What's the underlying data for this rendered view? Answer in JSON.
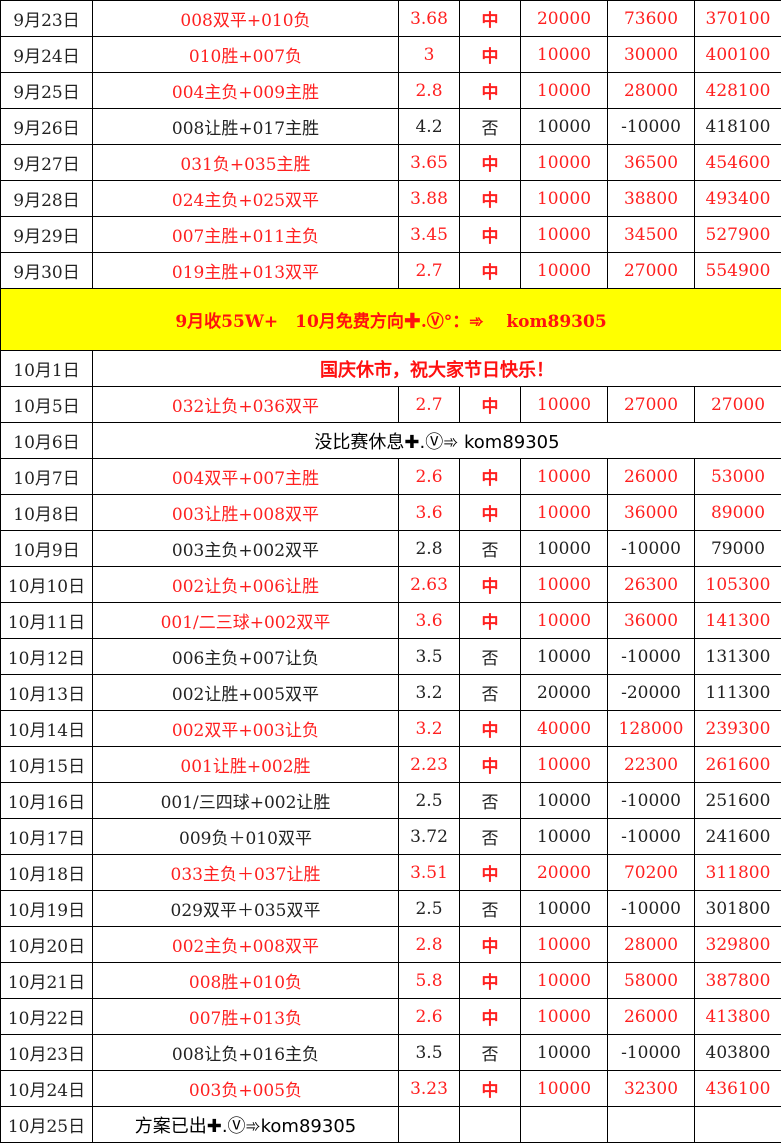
{
  "colors": {
    "win": "#ff2020",
    "loss": "#222222",
    "banner_bg": "#ffff00"
  },
  "rows_before": [
    {
      "date": "9月23日",
      "pick": "008双平+010负",
      "odds": "3.68",
      "result": "中",
      "stake": "20000",
      "profit": "73600",
      "total": "370100",
      "win": true
    },
    {
      "date": "9月24日",
      "pick": "010胜+007负",
      "odds": "3",
      "result": "中",
      "stake": "10000",
      "profit": "30000",
      "total": "400100",
      "win": true
    },
    {
      "date": "9月25日",
      "pick": "004主负+009主胜",
      "odds": "2.8",
      "result": "中",
      "stake": "10000",
      "profit": "28000",
      "total": "428100",
      "win": true
    },
    {
      "date": "9月26日",
      "pick": "008让胜+017主胜",
      "odds": "4.2",
      "result": "否",
      "stake": "10000",
      "profit": "-10000",
      "total": "418100",
      "win": false
    },
    {
      "date": "9月27日",
      "pick": "031负+035主胜",
      "odds": "3.65",
      "result": "中",
      "stake": "10000",
      "profit": "36500",
      "total": "454600",
      "win": true
    },
    {
      "date": "9月28日",
      "pick": "024主负+025双平",
      "odds": "3.88",
      "result": "中",
      "stake": "10000",
      "profit": "38800",
      "total": "493400",
      "win": true
    },
    {
      "date": "9月29日",
      "pick": "007主胜+011主负",
      "odds": "3.45",
      "result": "中",
      "stake": "10000",
      "profit": "34500",
      "total": "527900",
      "win": true
    },
    {
      "date": "9月30日",
      "pick": "019主胜+013双平",
      "odds": "2.7",
      "result": "中",
      "stake": "10000",
      "profit": "27000",
      "total": "554900",
      "win": true
    }
  ],
  "banner": "9月收55W+　10月免费方向✚.Ⓥ°：➾　 kom89305",
  "holiday": {
    "date": "10月1日",
    "text": "国庆休市，祝大家节日快乐！"
  },
  "rows_after": [
    {
      "date": "10月5日",
      "pick": "032让负+036双平",
      "odds": "2.7",
      "result": "中",
      "stake": "10000",
      "profit": "27000",
      "total": "27000",
      "win": true
    },
    {
      "date": "10月6日",
      "promo": "没比赛休息✚.Ⓥ➾ kom89305"
    },
    {
      "date": "10月7日",
      "pick": "004双平+007主胜",
      "odds": "2.6",
      "result": "中",
      "stake": "10000",
      "profit": "26000",
      "total": "53000",
      "win": true
    },
    {
      "date": "10月8日",
      "pick": "003让胜+008双平",
      "odds": "3.6",
      "result": "中",
      "stake": "10000",
      "profit": "36000",
      "total": "89000",
      "win": true
    },
    {
      "date": "10月9日",
      "pick": "003主负+002双平",
      "odds": "2.8",
      "result": "否",
      "stake": "10000",
      "profit": "-10000",
      "total": "79000",
      "win": false
    },
    {
      "date": "10月10日",
      "pick": "002让负+006让胜",
      "odds": "2.63",
      "result": "中",
      "stake": "10000",
      "profit": "26300",
      "total": "105300",
      "win": true
    },
    {
      "date": "10月11日",
      "pick": "001/二三球+002双平",
      "odds": "3.6",
      "result": "中",
      "stake": "10000",
      "profit": "36000",
      "total": "141300",
      "win": true
    },
    {
      "date": "10月12日",
      "pick": "006主负+007让负",
      "odds": "3.5",
      "result": "否",
      "stake": "10000",
      "profit": "-10000",
      "total": "131300",
      "win": false
    },
    {
      "date": "10月13日",
      "pick": "002让胜+005双平",
      "odds": "3.2",
      "result": "否",
      "stake": "20000",
      "profit": "-20000",
      "total": "111300",
      "win": false
    },
    {
      "date": "10月14日",
      "pick": "002双平+003让负",
      "odds": "3.2",
      "result": "中",
      "stake": "40000",
      "profit": "128000",
      "total": "239300",
      "win": true
    },
    {
      "date": "10月15日",
      "pick": "001让胜+002胜",
      "odds": "2.23",
      "result": "中",
      "stake": "10000",
      "profit": "22300",
      "total": "261600",
      "win": true
    },
    {
      "date": "10月16日",
      "pick": "001/三四球+002让胜",
      "odds": "2.5",
      "result": "否",
      "stake": "10000",
      "profit": "-10000",
      "total": "251600",
      "win": false
    },
    {
      "date": "10月17日",
      "pick": "009负＋010双平",
      "odds": "3.72",
      "result": "否",
      "stake": "10000",
      "profit": "-10000",
      "total": "241600",
      "win": false
    },
    {
      "date": "10月18日",
      "pick": "033主负＋037让胜",
      "odds": "3.51",
      "result": "中",
      "stake": "20000",
      "profit": "70200",
      "total": "311800",
      "win": true
    },
    {
      "date": "10月19日",
      "pick": "029双平＋035双平",
      "odds": "2.5",
      "result": "否",
      "stake": "10000",
      "profit": "-10000",
      "total": "301800",
      "win": false
    },
    {
      "date": "10月20日",
      "pick": "002主负+008双平",
      "odds": "2.8",
      "result": "中",
      "stake": "10000",
      "profit": "28000",
      "total": "329800",
      "win": true
    },
    {
      "date": "10月21日",
      "pick": "008胜+010负",
      "odds": "5.8",
      "result": "中",
      "stake": "10000",
      "profit": "58000",
      "total": "387800",
      "win": true
    },
    {
      "date": "10月22日",
      "pick": "007胜+013负",
      "odds": "2.6",
      "result": "中",
      "stake": "10000",
      "profit": "26000",
      "total": "413800",
      "win": true
    },
    {
      "date": "10月23日",
      "pick": "008让负+016主负",
      "odds": "3.5",
      "result": "否",
      "stake": "10000",
      "profit": "-10000",
      "total": "403800",
      "win": false
    },
    {
      "date": "10月24日",
      "pick": "003负+005负",
      "odds": "3.23",
      "result": "中",
      "stake": "10000",
      "profit": "32300",
      "total": "436100",
      "win": true
    },
    {
      "date": "10月25日",
      "plan": "方案已出✚.Ⓥ➾kom89305"
    }
  ]
}
